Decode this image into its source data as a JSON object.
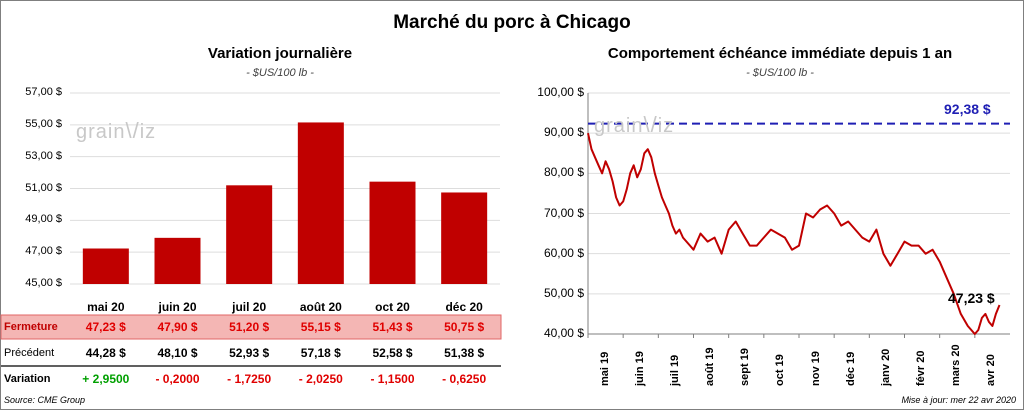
{
  "title": "Marché du porc à Chicago",
  "colors": {
    "bar": "#c00000",
    "line": "#c00000",
    "ref_line": "#1f1fb4",
    "fermeture_bg": "#f4b6b4",
    "positive": "#00a000",
    "negative": "#e00000"
  },
  "watermark": {
    "left": "grain",
    "right": "iz"
  },
  "left_chart": {
    "title": "Variation  journalière",
    "unit": "- $US/100 lb -"
  },
  "right_chart": {
    "title": "Comportement  échéance immédiate depuis 1 an",
    "unit": "- $US/100 lb -",
    "ref_label": "92,38 $",
    "last_label": "47,23 $"
  },
  "table": {
    "rows": [
      {
        "label": "Fermeture",
        "values": [
          "47,23  $",
          "47,90  $",
          "51,20  $",
          "55,15  $",
          "51,43  $",
          "50,75  $"
        ]
      },
      {
        "label": "Précédent",
        "values": [
          "44,28  $",
          "48,10  $",
          "52,93  $",
          "57,18  $",
          "52,58  $",
          "51,38  $"
        ]
      },
      {
        "label": "Variation",
        "values": [
          "+ 2,9500",
          "- 0,2000",
          "- 1,7250",
          "- 2,0250",
          "- 1,1500",
          "- 0,6250"
        ]
      }
    ]
  },
  "footer": {
    "source": "Source: CME Group",
    "update": "Mise à jour: mer 22 avr 2020"
  },
  "chart_data": [
    {
      "type": "bar",
      "title": "Variation  journalière",
      "ylabel": "$US/100 lb",
      "categories": [
        "mai 20",
        "juin 20",
        "juil 20",
        "août 20",
        "oct 20",
        "déc 20"
      ],
      "values": [
        47.23,
        47.9,
        51.2,
        55.15,
        51.43,
        50.75
      ],
      "ylim": [
        45,
        57
      ],
      "yticks": [
        45,
        47,
        49,
        51,
        53,
        55,
        57
      ],
      "ytick_labels": [
        "45,00 $",
        "47,00 $",
        "49,00 $",
        "51,00 $",
        "53,00 $",
        "55,00 $",
        "57,00 $"
      ]
    },
    {
      "type": "line",
      "title": "Comportement  échéance immédiate depuis 1 an",
      "ylabel": "$US/100 lb",
      "ylim": [
        40,
        100
      ],
      "yticks": [
        40,
        50,
        60,
        70,
        80,
        90,
        100
      ],
      "ytick_labels": [
        "40,00 $",
        "50,00 $",
        "60,00 $",
        "70,00 $",
        "80,00 $",
        "90,00 $",
        "100,00 $"
      ],
      "xlim_months": [
        0,
        12
      ],
      "xticks": [
        0,
        1,
        2,
        3,
        4,
        5,
        6,
        7,
        8,
        9,
        10,
        11,
        12
      ],
      "xtick_labels": [
        "mai 19",
        "juin 19",
        "juil 19",
        "août 19",
        "sept 19",
        "oct 19",
        "nov 19",
        "déc 19",
        "janv 20",
        "févr 20",
        "mars 20",
        "avr 20"
      ],
      "reference": {
        "value": 92.38,
        "label": "92,38 $",
        "style": "dashed"
      },
      "last": {
        "value": 47.23,
        "label": "47,23 $"
      },
      "x": [
        0,
        0.1,
        0.2,
        0.3,
        0.4,
        0.5,
        0.6,
        0.7,
        0.8,
        0.9,
        1.0,
        1.1,
        1.2,
        1.3,
        1.4,
        1.5,
        1.6,
        1.7,
        1.8,
        1.9,
        2.0,
        2.1,
        2.2,
        2.3,
        2.4,
        2.5,
        2.6,
        2.7,
        2.8,
        2.9,
        3.0,
        3.2,
        3.4,
        3.6,
        3.8,
        4.0,
        4.2,
        4.4,
        4.6,
        4.8,
        5.0,
        5.2,
        5.4,
        5.6,
        5.8,
        6.0,
        6.2,
        6.4,
        6.6,
        6.8,
        7.0,
        7.2,
        7.4,
        7.6,
        7.8,
        8.0,
        8.2,
        8.4,
        8.6,
        8.8,
        9.0,
        9.2,
        9.4,
        9.6,
        9.8,
        10.0,
        10.2,
        10.4,
        10.6,
        10.8,
        11.0,
        11.1,
        11.2,
        11.3,
        11.4,
        11.5,
        11.6,
        11.7
      ],
      "y": [
        90,
        86,
        84,
        82,
        80,
        83,
        81,
        78,
        74,
        72,
        73,
        76,
        80,
        82,
        79,
        81,
        85,
        86,
        84,
        80,
        77,
        74,
        72,
        70,
        67,
        65,
        66,
        64,
        63,
        62,
        61,
        65,
        63,
        64,
        60,
        66,
        68,
        65,
        62,
        62,
        64,
        66,
        65,
        64,
        61,
        62,
        70,
        69,
        71,
        72,
        70,
        67,
        68,
        66,
        64,
        63,
        66,
        60,
        57,
        60,
        63,
        62,
        62,
        60,
        61,
        58,
        54,
        50,
        45,
        42,
        40,
        41,
        44,
        45,
        43,
        42,
        45,
        47.23
      ]
    }
  ]
}
